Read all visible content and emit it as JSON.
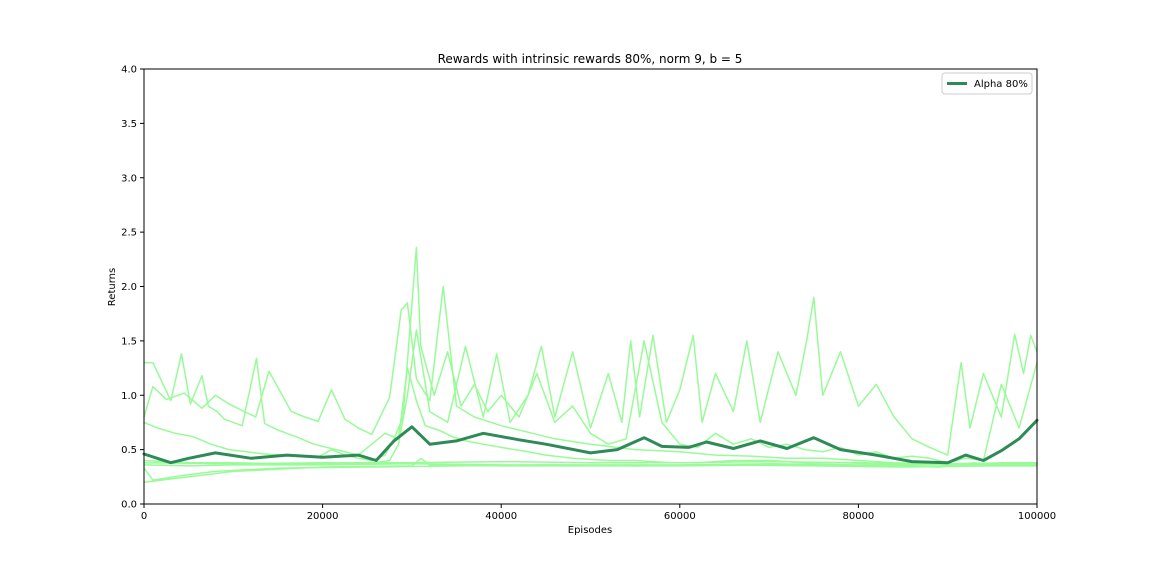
{
  "chart_data": {
    "type": "line",
    "title": "Rewards with intrinsic rewards 80%, norm 9, b = 5",
    "xlabel": "Episodes",
    "ylabel": "Returns",
    "xlim": [
      0,
      100000
    ],
    "ylim": [
      0,
      4.0
    ],
    "x_ticks": [
      0,
      20000,
      40000,
      60000,
      80000,
      100000
    ],
    "x_tick_labels": [
      "0",
      "20000",
      "40000",
      "60000",
      "80000",
      "100000"
    ],
    "y_ticks": [
      0,
      0.5,
      1.0,
      1.5,
      2.0,
      2.5,
      3.0,
      3.5,
      4.0
    ],
    "y_tick_labels": [
      "0.0",
      "0.5",
      "1.0",
      "1.5",
      "2.0",
      "2.5",
      "3.0",
      "3.5",
      "4.0"
    ],
    "grid": false,
    "legend": {
      "placement": "top-right",
      "entries": [
        "Alpha 80%"
      ]
    },
    "colors": {
      "mean": "#2e8b57",
      "runs": "#98fb98"
    },
    "series": [
      {
        "name": "Alpha 80%",
        "role": "mean",
        "x": [
          0,
          3000,
          5000,
          8000,
          12000,
          16000,
          20000,
          24000,
          26000,
          28000,
          30000,
          32000,
          35000,
          38000,
          42000,
          45000,
          50000,
          53000,
          56000,
          58000,
          61000,
          63000,
          66000,
          69000,
          72000,
          75000,
          78000,
          82000,
          86000,
          90000,
          92000,
          94000,
          96000,
          98000,
          100000
        ],
        "values": [
          0.46,
          0.38,
          0.42,
          0.47,
          0.42,
          0.45,
          0.43,
          0.45,
          0.4,
          0.58,
          0.71,
          0.55,
          0.58,
          0.65,
          0.59,
          0.55,
          0.47,
          0.5,
          0.61,
          0.53,
          0.52,
          0.57,
          0.51,
          0.58,
          0.51,
          0.61,
          0.5,
          0.45,
          0.39,
          0.38,
          0.45,
          0.4,
          0.49,
          0.6,
          0.77
        ]
      },
      {
        "role": "run",
        "x": [
          0,
          1000,
          3000,
          4200,
          5200,
          6500,
          7200,
          8200,
          9000,
          11000,
          12600,
          13500,
          15000,
          17000,
          19000,
          21500,
          24000,
          27000,
          28500,
          29500,
          30500,
          31500,
          33000,
          34500,
          36000,
          38000,
          40000,
          43000,
          45000,
          48000,
          52000,
          55000,
          59000,
          62000,
          66000,
          70000,
          74000,
          78000,
          82000,
          86000,
          90000,
          93000,
          96000,
          100000
        ],
        "values": [
          1.3,
          1.3,
          0.95,
          1.38,
          0.92,
          1.18,
          0.9,
          0.85,
          0.78,
          0.72,
          1.34,
          0.74,
          0.68,
          0.62,
          0.55,
          0.5,
          0.45,
          0.65,
          0.6,
          1.25,
          0.95,
          0.72,
          0.68,
          0.62,
          0.58,
          0.55,
          0.52,
          0.48,
          0.45,
          0.42,
          0.4,
          0.4,
          0.38,
          0.38,
          0.4,
          0.4,
          0.38,
          0.38,
          0.37,
          0.37,
          0.36,
          0.37,
          0.38,
          0.38
        ]
      },
      {
        "role": "run",
        "x": [
          0,
          1000,
          2500,
          4500,
          6500,
          8000,
          9500,
          11000,
          12500,
          14000,
          16500,
          18000,
          19500,
          21000,
          22500,
          24000,
          25500,
          27500,
          28800,
          29500,
          30500,
          32000,
          33500,
          35000,
          37000,
          40000,
          43000,
          46000,
          50000,
          55000,
          60000,
          64000,
          68000,
          72000,
          76000,
          80000,
          84000,
          88000,
          92000,
          96000,
          100000
        ],
        "values": [
          0.8,
          1.08,
          0.96,
          1.02,
          0.88,
          1.0,
          0.92,
          0.86,
          0.8,
          1.22,
          0.85,
          0.8,
          0.76,
          1.05,
          0.78,
          0.7,
          0.64,
          0.98,
          1.78,
          1.85,
          1.15,
          0.95,
          2.0,
          0.9,
          0.8,
          0.72,
          0.66,
          0.6,
          0.55,
          0.5,
          0.48,
          0.45,
          0.44,
          0.42,
          0.42,
          0.4,
          0.38,
          0.37,
          0.36,
          0.36,
          0.36
        ]
      },
      {
        "role": "run",
        "x": [
          0,
          1500,
          3500,
          5500,
          7500,
          9500,
          11500,
          13500,
          15500,
          17500,
          19500,
          21000,
          22500,
          24000,
          25500,
          27000,
          28000,
          29000,
          30500,
          31000,
          32500,
          34000,
          35500,
          37000,
          38500,
          40000,
          42000,
          44000,
          46000,
          48000,
          50000,
          52000,
          54000,
          56000,
          58000,
          60000,
          62000,
          64000,
          66000,
          68000,
          70000,
          72000,
          74000,
          76000,
          78000,
          80000,
          82000,
          84000,
          86000,
          88000,
          90000,
          92000,
          94000,
          96000,
          98000,
          100000
        ],
        "values": [
          0.75,
          0.7,
          0.65,
          0.62,
          0.55,
          0.5,
          0.48,
          0.46,
          0.45,
          0.44,
          0.43,
          0.5,
          0.45,
          0.42,
          0.4,
          0.45,
          0.6,
          0.8,
          2.36,
          1.45,
          1.0,
          1.4,
          0.9,
          1.1,
          0.85,
          1.0,
          0.8,
          1.2,
          0.75,
          0.9,
          0.65,
          0.55,
          0.6,
          1.5,
          0.75,
          0.55,
          0.52,
          0.65,
          0.55,
          0.6,
          0.52,
          0.55,
          0.5,
          0.48,
          0.52,
          0.45,
          0.48,
          0.42,
          0.44,
          0.42,
          0.38,
          0.42,
          0.4,
          1.1,
          0.7,
          1.3
        ]
      },
      {
        "role": "run",
        "x": [
          0,
          5000,
          10000,
          15000,
          20000,
          25000,
          27500,
          28500,
          29500,
          30500,
          32000,
          34000,
          36000,
          38000,
          39500,
          41000,
          43000,
          44500,
          46000,
          48000,
          50000,
          52000,
          53500,
          54500,
          55500,
          57000,
          58500,
          60000,
          61500,
          62500,
          64000,
          66000,
          67500,
          69000,
          71000,
          73000,
          74200,
          75000,
          76000,
          78000,
          80000,
          82000,
          84000,
          86000,
          88000,
          90000,
          91500,
          92500,
          94000,
          96000,
          97500,
          98500,
          99300,
          100000
        ],
        "values": [
          0.4,
          0.38,
          0.38,
          0.37,
          0.37,
          0.37,
          0.4,
          0.55,
          1.0,
          1.6,
          0.85,
          0.75,
          1.45,
          0.8,
          1.38,
          0.75,
          1.0,
          1.45,
          0.8,
          1.4,
          0.7,
          1.2,
          0.75,
          1.5,
          0.8,
          1.55,
          0.75,
          1.05,
          1.55,
          0.75,
          1.2,
          0.85,
          1.5,
          0.75,
          1.4,
          1.0,
          1.5,
          1.9,
          1.0,
          1.4,
          0.9,
          1.1,
          0.8,
          0.6,
          0.52,
          0.45,
          1.3,
          0.7,
          1.2,
          0.8,
          1.56,
          1.2,
          1.55,
          1.4
        ]
      },
      {
        "role": "run",
        "x": [
          0,
          10000,
          20000,
          30000,
          31000,
          32000,
          40000,
          50000,
          60000,
          70000,
          80000,
          85000,
          89000,
          91000,
          93000,
          95000,
          97000,
          99000,
          100000
        ],
        "values": [
          0.2,
          0.3,
          0.34,
          0.35,
          0.42,
          0.36,
          0.35,
          0.35,
          0.35,
          0.36,
          0.35,
          0.35,
          0.34,
          0.36,
          0.38,
          0.35,
          0.37,
          0.36,
          0.37
        ]
      },
      {
        "role": "run",
        "x": [
          0,
          5000,
          10000,
          20000,
          30000,
          40000,
          50000,
          60000,
          70000,
          80000,
          90000,
          100000
        ],
        "values": [
          0.36,
          0.35,
          0.36,
          0.36,
          0.37,
          0.36,
          0.36,
          0.36,
          0.37,
          0.36,
          0.36,
          0.37
        ]
      },
      {
        "role": "run",
        "x": [
          0,
          1000,
          5000,
          8000,
          15000,
          25000,
          35000,
          45000,
          55000,
          65000,
          75000,
          85000,
          95000,
          100000
        ],
        "values": [
          0.33,
          0.22,
          0.27,
          0.3,
          0.33,
          0.34,
          0.35,
          0.36,
          0.35,
          0.36,
          0.35,
          0.34,
          0.35,
          0.35
        ]
      },
      {
        "role": "run",
        "x": [
          0,
          10000,
          20000,
          30000,
          40000,
          50000,
          60000,
          70000,
          80000,
          90000,
          100000
        ],
        "values": [
          0.38,
          0.37,
          0.38,
          0.38,
          0.39,
          0.38,
          0.38,
          0.39,
          0.38,
          0.37,
          0.38
        ]
      }
    ]
  }
}
